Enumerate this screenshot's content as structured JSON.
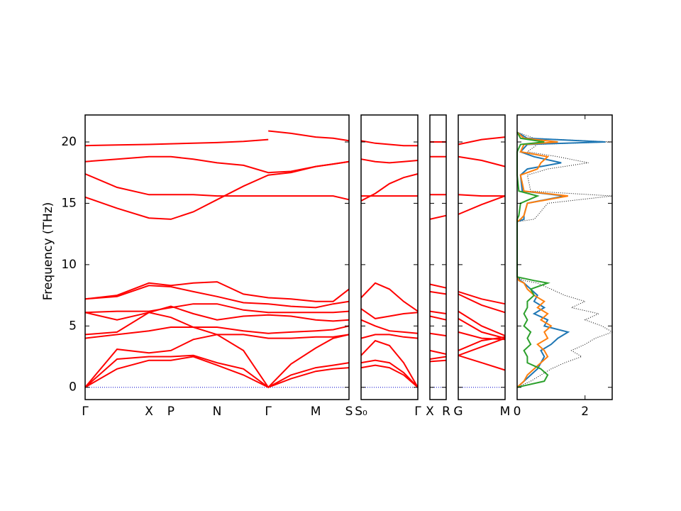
{
  "chart_data": {
    "type": "line",
    "ylabel": "Frequency (THz)",
    "ylim": [
      -1,
      22.2
    ],
    "yticks": [
      0,
      5,
      10,
      15,
      20
    ],
    "band_color": "#ff0000",
    "zero_line_color": "#0000cc",
    "panels": [
      {
        "xlim": [
          0,
          1
        ],
        "xticks": [
          {
            "value": 0,
            "label": "Γ"
          },
          {
            "value": 0.242,
            "label": "X"
          },
          {
            "value": 0.325,
            "label": "P"
          },
          {
            "value": 0.5,
            "label": "N"
          },
          {
            "value": 0.694,
            "label": "Γ"
          },
          {
            "value": 0.874,
            "label": "M"
          },
          {
            "value": 1,
            "label": "S"
          }
        ],
        "x": [
          0,
          0.121,
          0.242,
          0.325,
          0.41,
          0.5,
          0.6,
          0.694,
          0.78,
          0.874,
          0.94,
          1
        ],
        "series": [
          {
            "values": [
              19.7,
              19.75,
              19.8,
              19.85,
              19.9,
              19.95,
              20.05,
              20.2,
              null,
              null,
              null,
              null
            ]
          },
          {
            "values": [
              null,
              null,
              null,
              null,
              null,
              null,
              null,
              20.9,
              20.7,
              20.4,
              20.3,
              20.1
            ]
          },
          {
            "values": [
              18.4,
              18.6,
              18.8,
              18.8,
              18.6,
              18.3,
              18.1,
              17.5,
              17.6,
              18.0,
              18.2,
              18.4
            ]
          },
          {
            "values": [
              17.4,
              16.3,
              15.7,
              15.7,
              15.7,
              15.6,
              15.6,
              15.6,
              15.6,
              15.6,
              15.6,
              15.3
            ]
          },
          {
            "values": [
              15.5,
              14.6,
              13.8,
              13.7,
              14.3,
              15.3,
              16.4,
              17.3,
              17.5,
              18.0,
              18.2,
              18.4
            ]
          },
          {
            "values": [
              0,
              1.5,
              2.2,
              2.2,
              2.5,
              1.8,
              1.0,
              0,
              0.7,
              1.3,
              1.5,
              1.6
            ]
          },
          {
            "values": [
              0,
              2.3,
              2.5,
              2.5,
              2.6,
              2.0,
              1.5,
              0,
              1.0,
              1.6,
              1.8,
              2.0
            ]
          },
          {
            "values": [
              0,
              3.1,
              2.8,
              3.0,
              3.9,
              4.3,
              3.0,
              0,
              1.9,
              3.2,
              4.0,
              4.3
            ]
          },
          {
            "values": [
              4.0,
              4.3,
              4.6,
              4.9,
              4.9,
              4.3,
              4.3,
              4.0,
              4.0,
              4.1,
              4.1,
              4.3
            ]
          },
          {
            "values": [
              4.3,
              4.5,
              6.1,
              5.7,
              4.9,
              4.9,
              4.6,
              4.4,
              4.5,
              4.6,
              4.7,
              5.0
            ]
          },
          {
            "values": [
              6.1,
              5.5,
              6.1,
              6.6,
              6.0,
              5.5,
              5.8,
              5.9,
              5.8,
              5.5,
              5.4,
              5.5
            ]
          },
          {
            "values": [
              6.1,
              6.2,
              6.2,
              6.5,
              6.8,
              6.8,
              6.3,
              6.1,
              6.1,
              6.1,
              6.1,
              6.2
            ]
          },
          {
            "values": [
              7.2,
              7.4,
              8.3,
              8.2,
              7.8,
              7.4,
              6.9,
              6.8,
              6.6,
              6.5,
              6.8,
              7.0
            ]
          },
          {
            "values": [
              7.2,
              7.5,
              8.5,
              8.3,
              8.5,
              8.6,
              7.6,
              7.3,
              7.2,
              7.0,
              7.0,
              8.0
            ]
          }
        ]
      },
      {
        "xlim": [
          0,
          1
        ],
        "xticks": [
          {
            "value": 0,
            "label": "S₀"
          },
          {
            "value": 1,
            "label": "Γ"
          }
        ],
        "x": [
          0,
          0.25,
          0.5,
          0.75,
          1
        ],
        "series": [
          {
            "values": [
              20.1,
              19.9,
              19.8,
              19.7,
              19.7
            ]
          },
          {
            "values": [
              18.6,
              18.4,
              18.3,
              18.4,
              18.5
            ]
          },
          {
            "values": [
              15.2,
              15.8,
              16.6,
              17.1,
              17.4
            ]
          },
          {
            "values": [
              15.6,
              15.6,
              15.6,
              15.6,
              15.6
            ]
          },
          {
            "values": [
              7.3,
              8.5,
              8.0,
              7.0,
              6.2
            ]
          },
          {
            "values": [
              6.4,
              5.6,
              5.8,
              6.0,
              6.1
            ]
          },
          {
            "values": [
              5.5,
              5.0,
              4.6,
              4.5,
              4.4
            ]
          },
          {
            "values": [
              4.0,
              4.3,
              4.3,
              4.1,
              4.0
            ]
          },
          {
            "values": [
              2.6,
              3.8,
              3.4,
              2.0,
              0
            ]
          },
          {
            "values": [
              2.0,
              2.2,
              2.0,
              1.2,
              0
            ]
          },
          {
            "values": [
              1.6,
              1.8,
              1.6,
              1.0,
              0
            ]
          }
        ]
      },
      {
        "xlim": [
          0,
          1
        ],
        "xticks": [
          {
            "value": 0,
            "label": "X"
          },
          {
            "value": 1,
            "label": "R"
          }
        ],
        "x": [
          0,
          1
        ],
        "series": [
          {
            "values": [
              20.0,
              20.0
            ]
          },
          {
            "values": [
              18.8,
              18.8
            ]
          },
          {
            "values": [
              15.7,
              15.7
            ]
          },
          {
            "values": [
              13.7,
              14.0
            ]
          },
          {
            "values": [
              8.4,
              8.1
            ]
          },
          {
            "values": [
              7.8,
              7.6
            ]
          },
          {
            "values": [
              6.2,
              6.0
            ]
          },
          {
            "values": [
              5.8,
              5.5
            ]
          },
          {
            "values": [
              4.4,
              4.2
            ]
          },
          {
            "values": [
              3.0,
              2.7
            ]
          },
          {
            "values": [
              2.3,
              2.5
            ]
          },
          {
            "values": [
              2.1,
              2.2
            ]
          }
        ]
      },
      {
        "xlim": [
          0,
          1
        ],
        "xticks": [
          {
            "value": 0,
            "label": "G"
          },
          {
            "value": 1,
            "label": "M"
          }
        ],
        "x": [
          0,
          0.5,
          1
        ],
        "series": [
          {
            "values": [
              19.8,
              20.2,
              20.4
            ]
          },
          {
            "values": [
              18.8,
              18.5,
              18.0
            ]
          },
          {
            "values": [
              15.7,
              15.6,
              15.6
            ]
          },
          {
            "values": [
              14.1,
              14.9,
              15.6
            ]
          },
          {
            "values": [
              7.8,
              7.2,
              6.8
            ]
          },
          {
            "values": [
              7.6,
              6.7,
              6.1
            ]
          },
          {
            "values": [
              6.2,
              5.0,
              4.2
            ]
          },
          {
            "values": [
              5.6,
              4.5,
              4.0
            ]
          },
          {
            "values": [
              4.5,
              4.0,
              3.9
            ]
          },
          {
            "values": [
              3.0,
              3.8,
              4.1
            ]
          },
          {
            "values": [
              2.6,
              3.3,
              4.0
            ]
          },
          {
            "values": [
              2.6,
              2.0,
              1.4
            ]
          }
        ]
      }
    ],
    "dos": {
      "xlim": [
        0,
        2.8
      ],
      "xticks": [
        0,
        2
      ],
      "frequencies": [
        0,
        0.5,
        1,
        1.5,
        2,
        2.5,
        3,
        3.5,
        4,
        4.5,
        5,
        5.5,
        6,
        6.5,
        7,
        7.5,
        8,
        8.5,
        8.7,
        9,
        13.5,
        13.7,
        14,
        15,
        15.6,
        16,
        17.3,
        17.8,
        18.3,
        18.8,
        19.2,
        19.8,
        20,
        20.3,
        20.8
      ],
      "series": [
        {
          "color": "#000000",
          "dash": "dotted",
          "values": [
            0,
            0.4,
            0.7,
            1.0,
            1.4,
            1.9,
            1.6,
            2.0,
            2.3,
            2.8,
            2.5,
            2.0,
            2.4,
            1.6,
            2.0,
            1.4,
            1.0,
            0.6,
            0.2,
            0,
            0,
            0.5,
            0.6,
            0.9,
            2.8,
            0.4,
            0.3,
            0.9,
            2.1,
            1.2,
            0.3,
            0.6,
            2.8,
            0.5,
            0
          ]
        },
        {
          "color": "#1f77b4",
          "dash": "solid",
          "values": [
            0,
            0.2,
            0.4,
            0.6,
            0.7,
            0.8,
            0.7,
            1.0,
            1.2,
            1.5,
            0.8,
            0.9,
            0.5,
            0.8,
            0.5,
            0.6,
            0.4,
            0.2,
            0.1,
            0,
            0,
            0.2,
            0.2,
            0.3,
            1.4,
            0.15,
            0.1,
            0.3,
            1.3,
            0.5,
            0.1,
            0.3,
            2.6,
            0.3,
            0
          ]
        },
        {
          "color": "#ff7f0e",
          "dash": "solid",
          "values": [
            0,
            0.2,
            0.3,
            0.5,
            0.7,
            0.9,
            0.8,
            0.6,
            0.9,
            0.8,
            1.0,
            0.7,
            0.9,
            0.6,
            0.8,
            0.5,
            0.3,
            0.2,
            0.05,
            0,
            0,
            0.1,
            0.2,
            0.3,
            1.5,
            0.2,
            0.1,
            0.6,
            0.7,
            0.9,
            0.1,
            0.2,
            1.2,
            0.2,
            0
          ]
        },
        {
          "color": "#2ca02c",
          "dash": "solid",
          "values": [
            0,
            0.8,
            0.9,
            0.7,
            0.3,
            0.3,
            0.2,
            0.4,
            0.3,
            0.4,
            0.2,
            0.3,
            0.2,
            0.3,
            0.3,
            0.5,
            0.4,
            0.9,
            0.5,
            0,
            0,
            0,
            0.05,
            0.1,
            0.6,
            0.05,
            0,
            0,
            0,
            0,
            0,
            0.1,
            0.8,
            0.1,
            0
          ]
        }
      ]
    }
  }
}
